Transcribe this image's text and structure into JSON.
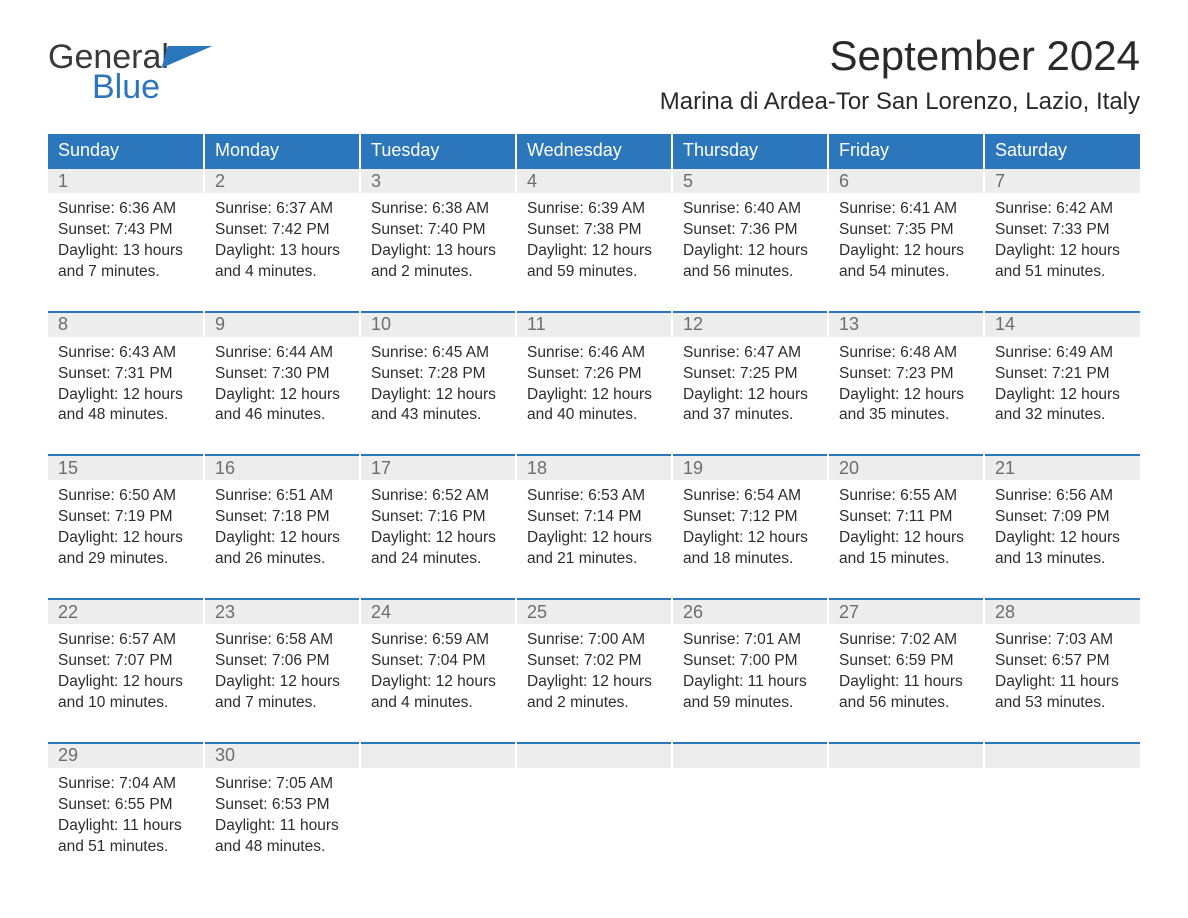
{
  "brand": {
    "line1": "General",
    "line2": "Blue"
  },
  "title": "September 2024",
  "location": "Marina di Ardea-Tor San Lorenzo, Lazio, Italy",
  "colors": {
    "header_bg": "#2c76bc",
    "header_fg": "#ffffff",
    "daynum_bg": "#ededed",
    "daynum_fg": "#6d6d6d",
    "text": "#2d2d2d",
    "background": "#ffffff"
  },
  "typography": {
    "title_fontsize_pt": 32,
    "location_fontsize_pt": 18,
    "header_fontsize_pt": 14,
    "body_fontsize_pt": 12,
    "font_family": "Arial"
  },
  "layout": {
    "columns": 7,
    "rows": 5,
    "border_color": "#2c76bc",
    "col_gap_color": "#ffffff"
  },
  "weekday_headers": [
    "Sunday",
    "Monday",
    "Tuesday",
    "Wednesday",
    "Thursday",
    "Friday",
    "Saturday"
  ],
  "labels": {
    "sunrise": "Sunrise:",
    "sunset": "Sunset:",
    "daylight": "Daylight:"
  },
  "weeks": [
    [
      {
        "day": "1",
        "sunrise": "6:36 AM",
        "sunset": "7:43 PM",
        "daylight": "13 hours and 7 minutes."
      },
      {
        "day": "2",
        "sunrise": "6:37 AM",
        "sunset": "7:42 PM",
        "daylight": "13 hours and 4 minutes."
      },
      {
        "day": "3",
        "sunrise": "6:38 AM",
        "sunset": "7:40 PM",
        "daylight": "13 hours and 2 minutes."
      },
      {
        "day": "4",
        "sunrise": "6:39 AM",
        "sunset": "7:38 PM",
        "daylight": "12 hours and 59 minutes."
      },
      {
        "day": "5",
        "sunrise": "6:40 AM",
        "sunset": "7:36 PM",
        "daylight": "12 hours and 56 minutes."
      },
      {
        "day": "6",
        "sunrise": "6:41 AM",
        "sunset": "7:35 PM",
        "daylight": "12 hours and 54 minutes."
      },
      {
        "day": "7",
        "sunrise": "6:42 AM",
        "sunset": "7:33 PM",
        "daylight": "12 hours and 51 minutes."
      }
    ],
    [
      {
        "day": "8",
        "sunrise": "6:43 AM",
        "sunset": "7:31 PM",
        "daylight": "12 hours and 48 minutes."
      },
      {
        "day": "9",
        "sunrise": "6:44 AM",
        "sunset": "7:30 PM",
        "daylight": "12 hours and 46 minutes."
      },
      {
        "day": "10",
        "sunrise": "6:45 AM",
        "sunset": "7:28 PM",
        "daylight": "12 hours and 43 minutes."
      },
      {
        "day": "11",
        "sunrise": "6:46 AM",
        "sunset": "7:26 PM",
        "daylight": "12 hours and 40 minutes."
      },
      {
        "day": "12",
        "sunrise": "6:47 AM",
        "sunset": "7:25 PM",
        "daylight": "12 hours and 37 minutes."
      },
      {
        "day": "13",
        "sunrise": "6:48 AM",
        "sunset": "7:23 PM",
        "daylight": "12 hours and 35 minutes."
      },
      {
        "day": "14",
        "sunrise": "6:49 AM",
        "sunset": "7:21 PM",
        "daylight": "12 hours and 32 minutes."
      }
    ],
    [
      {
        "day": "15",
        "sunrise": "6:50 AM",
        "sunset": "7:19 PM",
        "daylight": "12 hours and 29 minutes."
      },
      {
        "day": "16",
        "sunrise": "6:51 AM",
        "sunset": "7:18 PM",
        "daylight": "12 hours and 26 minutes."
      },
      {
        "day": "17",
        "sunrise": "6:52 AM",
        "sunset": "7:16 PM",
        "daylight": "12 hours and 24 minutes."
      },
      {
        "day": "18",
        "sunrise": "6:53 AM",
        "sunset": "7:14 PM",
        "daylight": "12 hours and 21 minutes."
      },
      {
        "day": "19",
        "sunrise": "6:54 AM",
        "sunset": "7:12 PM",
        "daylight": "12 hours and 18 minutes."
      },
      {
        "day": "20",
        "sunrise": "6:55 AM",
        "sunset": "7:11 PM",
        "daylight": "12 hours and 15 minutes."
      },
      {
        "day": "21",
        "sunrise": "6:56 AM",
        "sunset": "7:09 PM",
        "daylight": "12 hours and 13 minutes."
      }
    ],
    [
      {
        "day": "22",
        "sunrise": "6:57 AM",
        "sunset": "7:07 PM",
        "daylight": "12 hours and 10 minutes."
      },
      {
        "day": "23",
        "sunrise": "6:58 AM",
        "sunset": "7:06 PM",
        "daylight": "12 hours and 7 minutes."
      },
      {
        "day": "24",
        "sunrise": "6:59 AM",
        "sunset": "7:04 PM",
        "daylight": "12 hours and 4 minutes."
      },
      {
        "day": "25",
        "sunrise": "7:00 AM",
        "sunset": "7:02 PM",
        "daylight": "12 hours and 2 minutes."
      },
      {
        "day": "26",
        "sunrise": "7:01 AM",
        "sunset": "7:00 PM",
        "daylight": "11 hours and 59 minutes."
      },
      {
        "day": "27",
        "sunrise": "7:02 AM",
        "sunset": "6:59 PM",
        "daylight": "11 hours and 56 minutes."
      },
      {
        "day": "28",
        "sunrise": "7:03 AM",
        "sunset": "6:57 PM",
        "daylight": "11 hours and 53 minutes."
      }
    ],
    [
      {
        "day": "29",
        "sunrise": "7:04 AM",
        "sunset": "6:55 PM",
        "daylight": "11 hours and 51 minutes."
      },
      {
        "day": "30",
        "sunrise": "7:05 AM",
        "sunset": "6:53 PM",
        "daylight": "11 hours and 48 minutes."
      },
      null,
      null,
      null,
      null,
      null
    ]
  ]
}
